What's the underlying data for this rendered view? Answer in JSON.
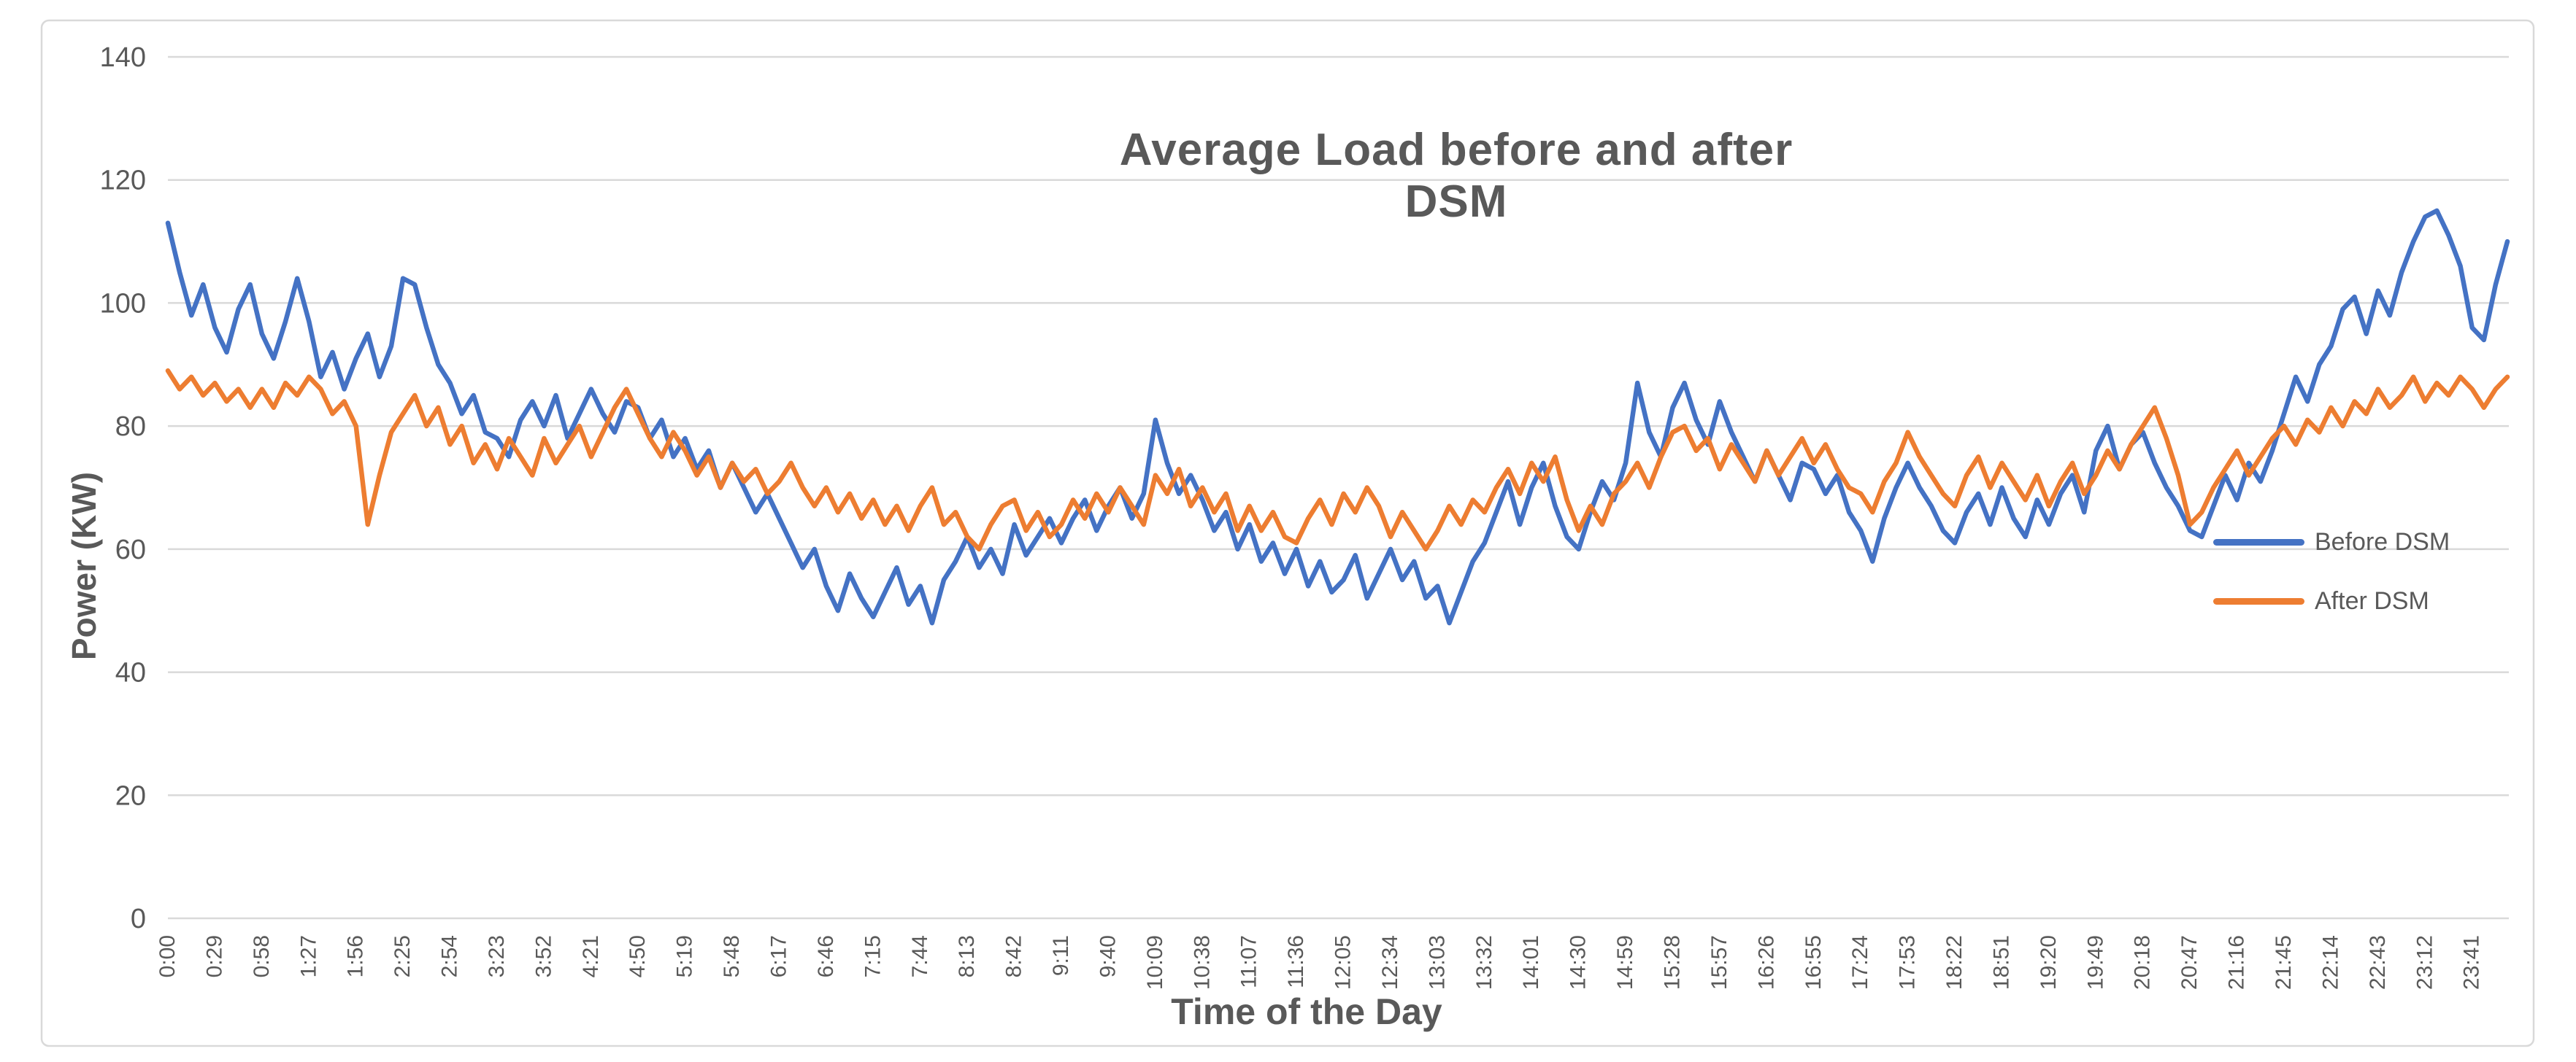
{
  "page": {
    "background_color": "#ffffff",
    "frame_color": "#d9d9d9"
  },
  "chart_data": {
    "type": "line",
    "title": "Average Load before and after DSM",
    "xlabel": "Time of the Day",
    "ylabel": "Power (KW)",
    "ylim": [
      0,
      140
    ],
    "yticks": [
      0,
      20,
      40,
      60,
      80,
      100,
      120,
      140
    ],
    "grid": "horizontal-only",
    "gridline_color": "#d9d9d9",
    "text_color": "#595959",
    "legend": {
      "position": "inside-right",
      "entries": [
        {
          "label": "Before DSM",
          "color": "#4472C4"
        },
        {
          "label": "After DSM",
          "color": "#ED7D31"
        }
      ]
    },
    "categories": [
      "0:00",
      "0:29",
      "0:58",
      "1:27",
      "1:56",
      "2:25",
      "2:54",
      "3:23",
      "3:52",
      "4:21",
      "4:50",
      "5:19",
      "5:48",
      "6:17",
      "6:46",
      "7:15",
      "7:44",
      "8:13",
      "8:42",
      "9:11",
      "9:40",
      "10:09",
      "10:38",
      "11:07",
      "11:36",
      "12:05",
      "12:34",
      "13:03",
      "13:32",
      "14:01",
      "14:30",
      "14:59",
      "15:28",
      "15:57",
      "16:26",
      "16:55",
      "17:24",
      "17:53",
      "18:22",
      "18:51",
      "19:20",
      "19:49",
      "20:18",
      "20:47",
      "21:16",
      "21:45",
      "22:14",
      "22:43",
      "23:12",
      "23:41"
    ],
    "points_per_category": 4,
    "series": [
      {
        "name": "Before DSM",
        "color": "#4472C4",
        "values": [
          113,
          105,
          98,
          103,
          96,
          92,
          99,
          103,
          95,
          91,
          97,
          104,
          97,
          88,
          92,
          86,
          91,
          95,
          88,
          93,
          104,
          103,
          96,
          90,
          87,
          82,
          85,
          79,
          78,
          75,
          81,
          84,
          80,
          85,
          78,
          82,
          86,
          82,
          79,
          84,
          83,
          78,
          81,
          75,
          78,
          73,
          76,
          70,
          74,
          70,
          66,
          69,
          65,
          61,
          57,
          60,
          54,
          50,
          56,
          52,
          49,
          53,
          57,
          51,
          54,
          48,
          55,
          58,
          62,
          57,
          60,
          56,
          64,
          59,
          62,
          65,
          61,
          65,
          68,
          63,
          67,
          70,
          65,
          69,
          81,
          74,
          69,
          72,
          68,
          63,
          66,
          60,
          64,
          58,
          61,
          56,
          60,
          54,
          58,
          53,
          55,
          59,
          52,
          56,
          60,
          55,
          58,
          52,
          54,
          48,
          53,
          58,
          61,
          66,
          71,
          64,
          70,
          74,
          67,
          62,
          60,
          66,
          71,
          68,
          74,
          87,
          79,
          75,
          83,
          87,
          81,
          77,
          84,
          79,
          75,
          71,
          76,
          72,
          68,
          74,
          73,
          69,
          72,
          66,
          63,
          58,
          65,
          70,
          74,
          70,
          67,
          63,
          61,
          66,
          69,
          64,
          70,
          65,
          62,
          68,
          64,
          69,
          72,
          66,
          76,
          80,
          73,
          77,
          79,
          74,
          70,
          67,
          63,
          62,
          67,
          72,
          68,
          74,
          71,
          76,
          82,
          88,
          84,
          90,
          93,
          99,
          101,
          95,
          102,
          98,
          105,
          110,
          114,
          115,
          111,
          106,
          96,
          94,
          103,
          110
        ]
      },
      {
        "name": "After DSM",
        "color": "#ED7D31",
        "values": [
          89,
          86,
          88,
          85,
          87,
          84,
          86,
          83,
          86,
          83,
          87,
          85,
          88,
          86,
          82,
          84,
          80,
          64,
          72,
          79,
          82,
          85,
          80,
          83,
          77,
          80,
          74,
          77,
          73,
          78,
          75,
          72,
          78,
          74,
          77,
          80,
          75,
          79,
          83,
          86,
          82,
          78,
          75,
          79,
          76,
          72,
          75,
          70,
          74,
          71,
          73,
          69,
          71,
          74,
          70,
          67,
          70,
          66,
          69,
          65,
          68,
          64,
          67,
          63,
          67,
          70,
          64,
          66,
          62,
          60,
          64,
          67,
          68,
          63,
          66,
          62,
          64,
          68,
          65,
          69,
          66,
          70,
          67,
          64,
          72,
          69,
          73,
          67,
          70,
          66,
          69,
          63,
          67,
          63,
          66,
          62,
          61,
          65,
          68,
          64,
          69,
          66,
          70,
          67,
          62,
          66,
          63,
          60,
          63,
          67,
          64,
          68,
          66,
          70,
          73,
          69,
          74,
          71,
          75,
          68,
          63,
          67,
          64,
          69,
          71,
          74,
          70,
          75,
          79,
          80,
          76,
          78,
          73,
          77,
          74,
          71,
          76,
          72,
          75,
          78,
          74,
          77,
          73,
          70,
          69,
          66,
          71,
          74,
          79,
          75,
          72,
          69,
          67,
          72,
          75,
          70,
          74,
          71,
          68,
          72,
          67,
          71,
          74,
          69,
          72,
          76,
          73,
          77,
          80,
          83,
          78,
          72,
          64,
          66,
          70,
          73,
          76,
          72,
          75,
          78,
          80,
          77,
          81,
          79,
          83,
          80,
          84,
          82,
          86,
          83,
          85,
          88,
          84,
          87,
          85,
          88,
          86,
          83,
          86,
          88
        ]
      }
    ]
  }
}
